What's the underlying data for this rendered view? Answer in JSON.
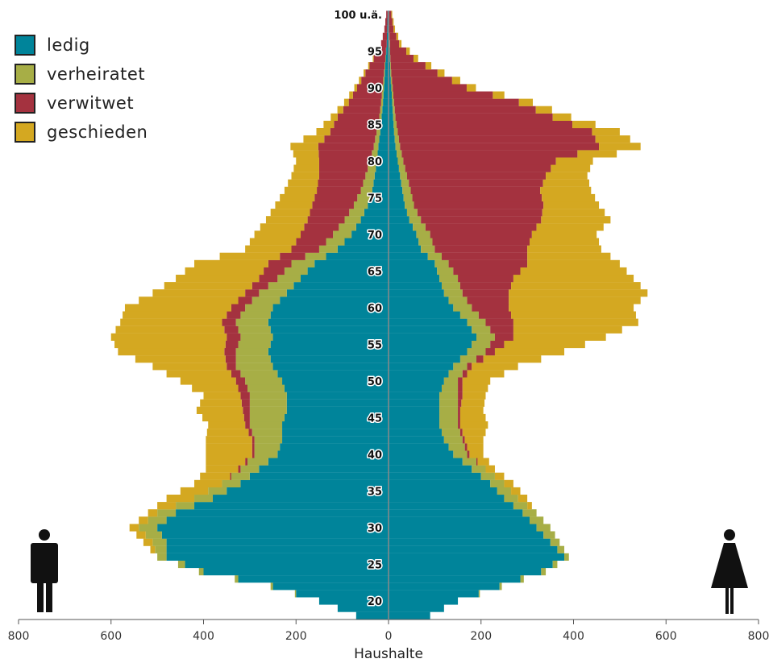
{
  "legend": {
    "items": [
      {
        "label": "ledig",
        "color": "#00849a"
      },
      {
        "label": "verheiratet",
        "color": "#a7ae46"
      },
      {
        "label": "verwitwet",
        "color": "#a4323f"
      },
      {
        "label": "geschieden",
        "color": "#d4a821"
      }
    ]
  },
  "icons": {
    "left": "male-person-icon",
    "right": "female-person-icon"
  },
  "chart_data": {
    "type": "bar",
    "orientation": "horizontal-pyramid",
    "title": "",
    "xlabel": "Haushalte",
    "ylabel": "",
    "xlim": [
      -800,
      800
    ],
    "x_tick_labels": [
      "800",
      "600",
      "400",
      "200",
      "0",
      "200",
      "400",
      "600",
      "800"
    ],
    "x_tick_values": [
      -800,
      -600,
      -400,
      -200,
      0,
      200,
      400,
      600,
      800
    ],
    "age_range": [
      18,
      100
    ],
    "age_labels": [
      "20",
      "25",
      "30",
      "35",
      "40",
      "45",
      "50",
      "55",
      "60",
      "65",
      "70",
      "75",
      "80",
      "85",
      "90",
      "95",
      "100 u.ä."
    ],
    "age_label_values": [
      20,
      25,
      30,
      35,
      40,
      45,
      50,
      55,
      60,
      65,
      70,
      75,
      80,
      85,
      90,
      95,
      100
    ],
    "series_names": [
      "ledig",
      "verheiratet",
      "verwitwet",
      "geschieden"
    ],
    "stacking": "cumulative outward from 0; values are segment sizes",
    "male": {
      "ages": [
        18,
        20,
        22,
        24,
        26,
        28,
        30,
        32,
        34,
        36,
        38,
        40,
        42,
        44,
        46,
        48,
        50,
        52,
        54,
        56,
        58,
        60,
        62,
        64,
        66,
        68,
        70,
        72,
        74,
        76,
        78,
        80,
        82,
        84,
        86,
        88,
        90,
        92,
        94,
        96,
        98,
        100
      ],
      "ledig": [
        70,
        150,
        250,
        400,
        480,
        480,
        500,
        460,
        380,
        320,
        280,
        240,
        230,
        230,
        220,
        220,
        230,
        250,
        260,
        250,
        260,
        250,
        220,
        190,
        160,
        110,
        80,
        60,
        45,
        35,
        30,
        25,
        22,
        18,
        15,
        12,
        10,
        8,
        6,
        4,
        3,
        2
      ],
      "verheiratet": [
        0,
        0,
        5,
        10,
        20,
        30,
        40,
        40,
        40,
        40,
        40,
        50,
        60,
        70,
        80,
        80,
        80,
        80,
        70,
        70,
        70,
        60,
        60,
        50,
        50,
        40,
        40,
        35,
        30,
        25,
        20,
        15,
        10,
        8,
        5,
        4,
        3,
        2,
        1,
        0,
        0,
        0
      ],
      "verwitwet": [
        0,
        0,
        0,
        0,
        0,
        0,
        0,
        0,
        0,
        0,
        5,
        5,
        5,
        10,
        15,
        20,
        20,
        20,
        25,
        30,
        30,
        30,
        30,
        40,
        50,
        60,
        70,
        80,
        90,
        95,
        100,
        110,
        120,
        100,
        90,
        70,
        55,
        40,
        25,
        12,
        6,
        3
      ],
      "geschieden": [
        0,
        0,
        0,
        0,
        0,
        20,
        20,
        20,
        60,
        60,
        70,
        100,
        100,
        80,
        100,
        80,
        120,
        160,
        230,
        250,
        220,
        230,
        200,
        180,
        160,
        100,
        100,
        90,
        80,
        70,
        60,
        50,
        60,
        30,
        15,
        10,
        6,
        4,
        2,
        0,
        0,
        0
      ]
    },
    "female": {
      "ages": [
        18,
        20,
        22,
        24,
        26,
        28,
        30,
        32,
        34,
        36,
        38,
        40,
        42,
        44,
        46,
        48,
        50,
        52,
        54,
        56,
        58,
        60,
        62,
        64,
        66,
        68,
        70,
        72,
        74,
        76,
        78,
        80,
        82,
        84,
        86,
        88,
        90,
        92,
        94,
        96,
        98,
        100
      ],
      "ledig": [
        90,
        150,
        240,
        330,
        380,
        350,
        320,
        290,
        250,
        220,
        180,
        140,
        120,
        110,
        110,
        110,
        120,
        140,
        170,
        190,
        170,
        140,
        120,
        110,
        100,
        70,
        60,
        45,
        35,
        30,
        25,
        20,
        15,
        12,
        10,
        8,
        6,
        4,
        3,
        2,
        1,
        1
      ],
      "verheiratet": [
        0,
        0,
        5,
        10,
        10,
        20,
        30,
        30,
        30,
        30,
        30,
        30,
        40,
        40,
        40,
        40,
        30,
        30,
        40,
        40,
        40,
        40,
        40,
        40,
        30,
        30,
        30,
        25,
        20,
        18,
        15,
        12,
        10,
        8,
        5,
        4,
        3,
        2,
        1,
        1,
        0,
        0
      ],
      "verwitwet": [
        0,
        0,
        0,
        0,
        0,
        0,
        0,
        0,
        0,
        0,
        0,
        5,
        5,
        5,
        5,
        10,
        10,
        10,
        20,
        40,
        60,
        80,
        100,
        120,
        170,
        200,
        220,
        260,
        280,
        280,
        300,
        330,
        430,
        420,
        340,
        270,
        160,
        100,
        50,
        20,
        10,
        5
      ],
      "geschieden": [
        0,
        0,
        0,
        0,
        0,
        0,
        0,
        0,
        20,
        20,
        20,
        30,
        40,
        60,
        50,
        50,
        60,
        100,
        150,
        200,
        270,
        270,
        300,
        260,
        200,
        160,
        140,
        150,
        120,
        110,
        90,
        80,
        90,
        60,
        40,
        30,
        20,
        15,
        10,
        5,
        3,
        2
      ]
    }
  },
  "axis": {
    "title": "Haushalte"
  }
}
